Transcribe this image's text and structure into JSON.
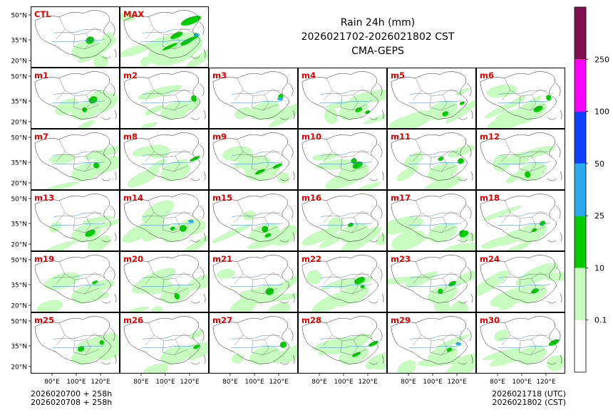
{
  "title": {
    "line1": "Rain 24h (mm)",
    "line2": "2026021702-2026021802 CST",
    "line3": "CMA-GEPS"
  },
  "footer": {
    "left_line1": "2026020700 + 258h",
    "left_line2": "2026020708 + 258h",
    "right_line1": "2026021718 (UTC)",
    "right_line2": "2026021802 (CST)"
  },
  "axes": {
    "lat_ticks": [
      "50°N",
      "35°N",
      "20°N"
    ],
    "lon_ticks": [
      "80°E",
      "100°E",
      "120°E"
    ]
  },
  "colorbar": {
    "labels": [
      "0.1",
      "10",
      "25",
      "50",
      "100",
      "250"
    ],
    "colors": [
      "#ffffff",
      "#c8fbc0",
      "#00cc00",
      "#2aaaee",
      "#1040ff",
      "#ff00ff",
      "#80104f"
    ]
  },
  "panels": {
    "top_row": [
      "CTL",
      "MAX"
    ],
    "rows": [
      [
        "m1",
        "m2",
        "m3",
        "m4",
        "m5",
        "m6"
      ],
      [
        "m7",
        "m8",
        "m9",
        "m10",
        "m11",
        "m12"
      ],
      [
        "m13",
        "m14",
        "m15",
        "m16",
        "m17",
        "m18"
      ],
      [
        "m19",
        "m20",
        "m21",
        "m22",
        "m23",
        "m24"
      ],
      [
        "m25",
        "m26",
        "m27",
        "m28",
        "m29",
        "m30"
      ]
    ]
  }
}
